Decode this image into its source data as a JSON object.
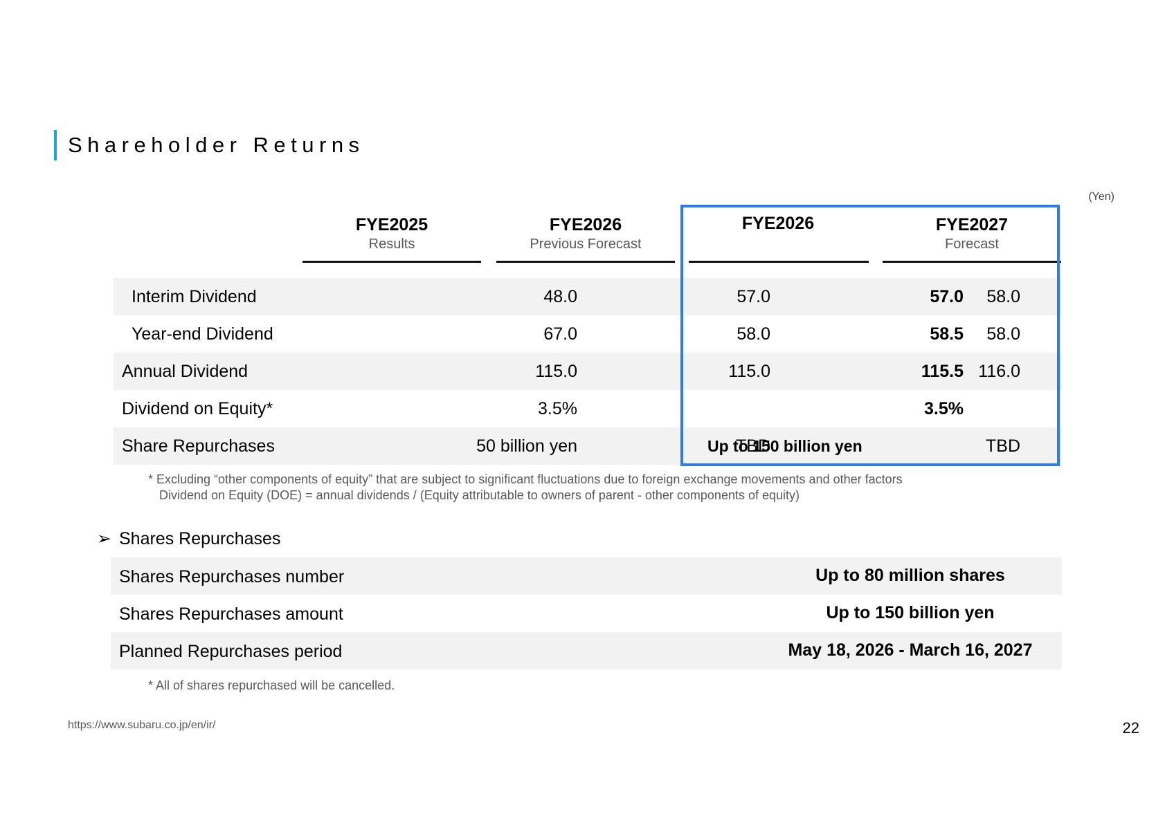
{
  "title": "Shareholder Returns",
  "unit": "(Yen)",
  "columns": [
    {
      "head": "FYE2025",
      "sub": "Results"
    },
    {
      "head": "FYE2026",
      "sub": "Previous Forecast"
    },
    {
      "head": "FYE2026",
      "sub": ""
    },
    {
      "head": "FYE2027",
      "sub": "Forecast"
    }
  ],
  "rows": [
    {
      "label": "Interim Dividend",
      "values": [
        "48.0",
        "57.0",
        "57.0",
        "58.0"
      ]
    },
    {
      "label": "Year-end Dividend",
      "values": [
        "67.0",
        "58.0",
        "58.5",
        "58.0"
      ]
    },
    {
      "label": "Annual Dividend",
      "values": [
        "115.0",
        "115.0",
        "115.5",
        "116.0"
      ]
    },
    {
      "label": "Dividend on Equity*",
      "values": [
        "3.5%",
        "",
        "3.5%",
        ""
      ]
    },
    {
      "label": "Share Repurchases",
      "values": [
        "50 billion yen",
        "TBD",
        "Up to 150 billion yen",
        "TBD"
      ]
    }
  ],
  "notes": [
    "* Excluding “other components of equity” that are subject to significant fluctuations due to foreign exchange movements and other factors",
    "Dividend on Equity (DOE) = annual dividends / (Equity attributable to owners of parent - other components of equity)"
  ],
  "repurchases": {
    "heading": "Shares Repurchases",
    "bullet": "➢",
    "items": [
      {
        "label": "Shares Repurchases number",
        "value": "Up to 80 million shares"
      },
      {
        "label": "Shares Repurchases amount",
        "value": "Up to 150 billion yen"
      },
      {
        "label": "Planned Repurchases period",
        "value": "May 18, 2026 - March 16, 2027"
      }
    ],
    "note": "* All of shares repurchased will be cancelled."
  },
  "footer": {
    "url": "https://www.subaru.co.jp/en/ir/",
    "page": "22"
  },
  "colors": {
    "accent": "#1aa3df",
    "highlight": "#2f7ce8",
    "row_gray": "#f2f2f2"
  }
}
